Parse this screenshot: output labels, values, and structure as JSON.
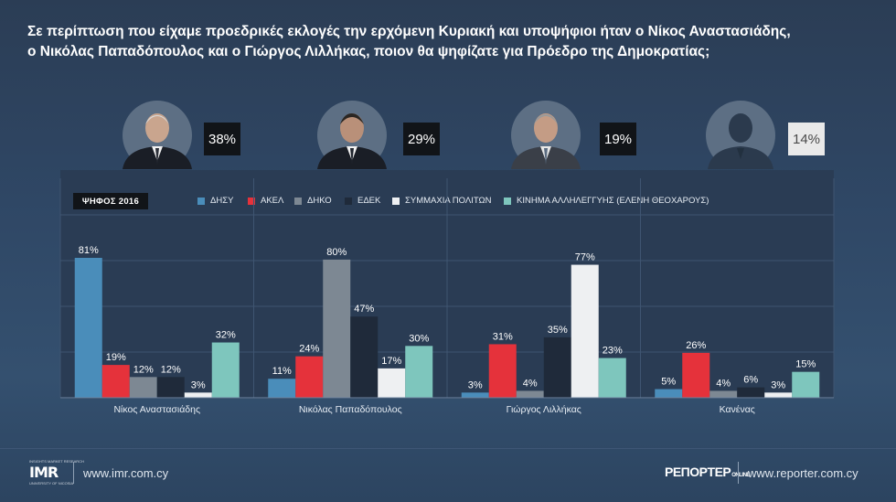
{
  "question": {
    "line1": "Σε περίπτωση που είχαμε προεδρικές εκλογές την ερχόμενη Κυριακή και υποψήφιοι ήταν ο Νίκος Αναστασιάδης,",
    "line2": "ο Νικόλας Παπαδόπουλος και ο Γιώργος Λιλλήκας, ποιον θα ψηφίζατε για Πρόεδρο της Δημοκρατίας;"
  },
  "candidates": [
    {
      "name": "Νίκος Αναστασιάδης",
      "percent": "38%",
      "avatar": "person-photo-icon"
    },
    {
      "name": "Νικόλας Παπαδόπουλος",
      "percent": "29%",
      "avatar": "person-photo-icon"
    },
    {
      "name": "Γιώργος Λιλλήκας",
      "percent": "19%",
      "avatar": "person-photo-icon"
    },
    {
      "name": "Κανένας",
      "percent": "14%",
      "avatar": "person-silhouette-icon"
    }
  ],
  "legend_title": "ΨΗΦΟΣ 2016",
  "colors": {
    "ΔΗΣΥ": "#4a8dba",
    "ΑΚΕΛ": "#e5323b",
    "ΔΗΚΟ": "#7d8893",
    "ΕΔΕΚ": "#1f2a3a",
    "ΣΥΜΜΑΧΙΑ ΠΟΛΙΤΩΝ": "#eef0f2",
    "ΚΙΝΗΜΑ ΑΛΛΗΛΕΓΓΥΗΣ (ΕΛΕΝΗ ΘΕΟΧΑΡΟΥΣ)": "#7ec6bd"
  },
  "chart_data": {
    "type": "bar",
    "categories": [
      "Νίκος Αναστασιάδης",
      "Νικόλας Παπαδόπουλος",
      "Γιώργος Λιλλήκας",
      "Κανένας"
    ],
    "series": [
      {
        "name": "ΔΗΣΥ",
        "values": [
          81,
          11,
          3,
          5
        ]
      },
      {
        "name": "ΑΚΕΛ",
        "values": [
          19,
          24,
          31,
          26
        ]
      },
      {
        "name": "ΔΗΚΟ",
        "values": [
          12,
          80,
          4,
          4
        ]
      },
      {
        "name": "ΕΔΕΚ",
        "values": [
          12,
          47,
          35,
          6
        ]
      },
      {
        "name": "ΣΥΜΜΑΧΙΑ ΠΟΛΙΤΩΝ",
        "values": [
          3,
          17,
          77,
          3
        ]
      },
      {
        "name": "ΚΙΝΗΜΑ ΑΛΛΗΛΕΓΓΥΗΣ (ΕΛΕΝΗ ΘΕΟΧΑΡΟΥΣ)",
        "values": [
          32,
          30,
          23,
          15
        ]
      }
    ],
    "value_suffix": "%",
    "ylim": [
      0,
      100
    ],
    "grid": true,
    "legend_position": "top"
  },
  "footer": {
    "imr_logo_text": "IMR",
    "imr_logo_tagline_top": "INSIGHTS MARKET RESEARCH",
    "imr_logo_tagline_bottom": "UNIVERSITY OF NICOSIA",
    "imr_url": "www.imr.com.cy",
    "reporter_logo_text": "ΡΕΠΟΡΤΕΡ",
    "reporter_logo_suffix": "ONLINE",
    "reporter_url": "www.reporter.com.cy"
  }
}
